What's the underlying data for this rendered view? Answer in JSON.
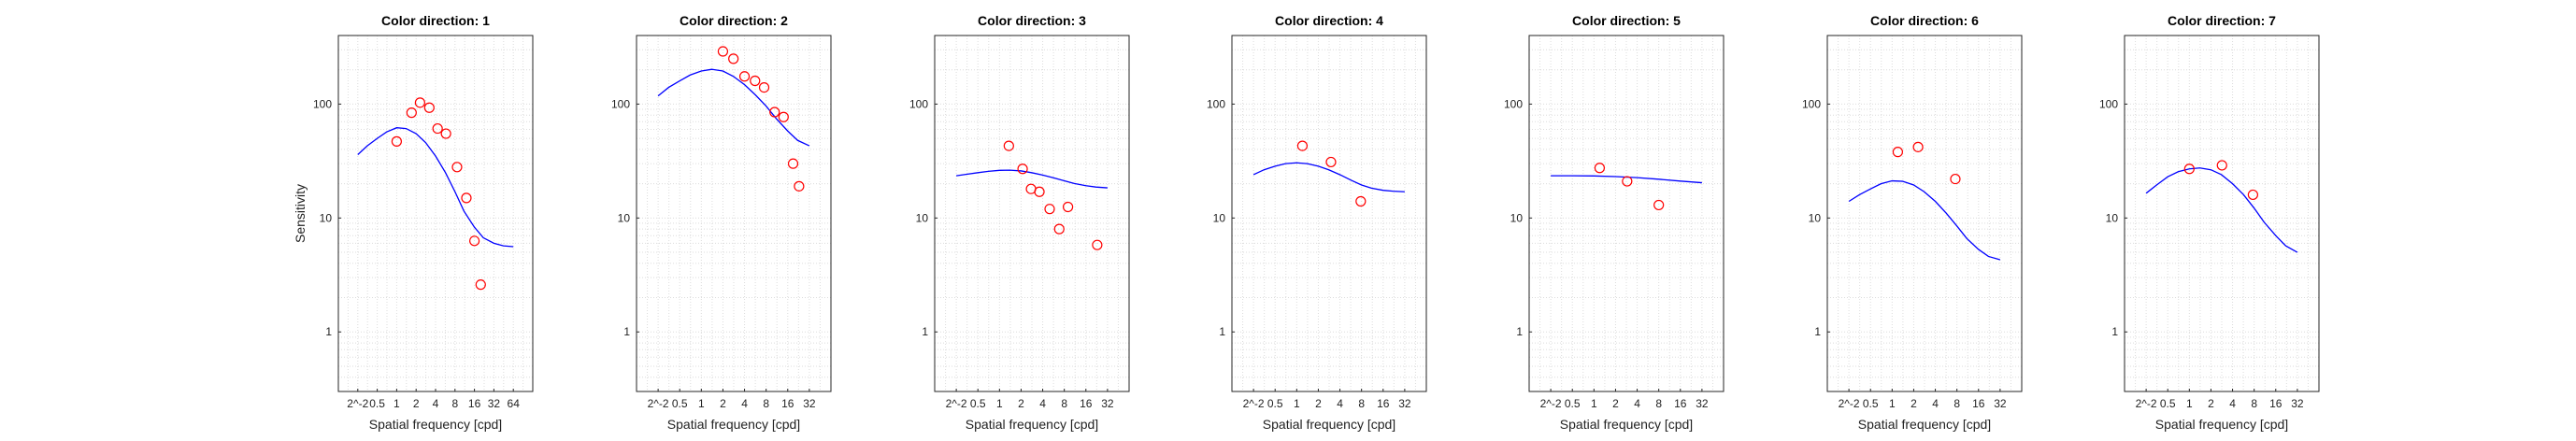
{
  "chart_data": [
    {
      "type": "line+scatter",
      "title": "Color direction: 1",
      "xlabel": "Spatial frequency [cpd]",
      "ylabel": "Sensitivity",
      "xscale": "log2",
      "yscale": "log10",
      "xlim": [
        0.125,
        128
      ],
      "ylim": [
        0.3,
        400
      ],
      "xticks": [
        0.25,
        0.5,
        1,
        2,
        4,
        8,
        16,
        32,
        64
      ],
      "xticklabels": [
        "2^-2",
        "0.5",
        "1",
        "2",
        "4",
        "8",
        "16",
        "32",
        "64"
      ],
      "yticks": [
        1,
        10,
        100
      ],
      "yticklabels": [
        "1",
        "10",
        "100"
      ],
      "grid": true,
      "model_curve": {
        "x": [
          0.25,
          0.35,
          0.5,
          0.7,
          1,
          1.4,
          2,
          2.8,
          4,
          5.7,
          8,
          11,
          16,
          22,
          32,
          45,
          64
        ],
        "y": [
          36,
          43,
          50,
          57,
          62,
          61,
          55,
          46,
          35,
          25,
          17,
          11.5,
          8.3,
          6.7,
          6.0,
          5.7,
          5.6
        ]
      },
      "measured": {
        "x": [
          1,
          1.7,
          2.3,
          3.2,
          4.3,
          5.8,
          8.6,
          12,
          16,
          20
        ],
        "y": [
          47,
          84,
          103,
          93,
          61,
          55,
          28,
          15,
          6.3,
          2.6
        ]
      }
    },
    {
      "type": "line+scatter",
      "title": "Color direction: 2",
      "xlabel": "Spatial frequency [cpd]",
      "ylabel": "",
      "xscale": "log2",
      "yscale": "log10",
      "xlim": [
        0.125,
        64
      ],
      "ylim": [
        0.3,
        400
      ],
      "xticks": [
        0.25,
        0.5,
        1,
        2,
        4,
        8,
        16,
        32
      ],
      "xticklabels": [
        "2^-2",
        "0.5",
        "1",
        "2",
        "4",
        "8",
        "16",
        "32"
      ],
      "yticks": [
        1,
        10,
        100
      ],
      "yticklabels": [
        "1",
        "10",
        "100"
      ],
      "grid": true,
      "model_curve": {
        "x": [
          0.25,
          0.35,
          0.5,
          0.7,
          1,
          1.4,
          2,
          2.8,
          4,
          5.7,
          8,
          11,
          16,
          22,
          32
        ],
        "y": [
          118,
          140,
          160,
          180,
          195,
          202,
          195,
          175,
          148,
          120,
          96,
          75,
          58,
          48,
          43
        ]
      },
      "measured": {
        "x": [
          2,
          2.8,
          4,
          5.6,
          7.5,
          10.5,
          14,
          19,
          23
        ],
        "y": [
          290,
          250,
          175,
          160,
          140,
          85,
          77,
          30,
          19
        ]
      }
    },
    {
      "type": "line+scatter",
      "title": "Color direction: 3",
      "xlabel": "Spatial frequency [cpd]",
      "ylabel": "",
      "xscale": "log2",
      "yscale": "log10",
      "xlim": [
        0.125,
        64
      ],
      "ylim": [
        0.3,
        400
      ],
      "xticks": [
        0.25,
        0.5,
        1,
        2,
        4,
        8,
        16,
        32
      ],
      "xticklabels": [
        "2^-2",
        "0.5",
        "1",
        "2",
        "4",
        "8",
        "16",
        "32"
      ],
      "yticks": [
        1,
        10,
        100
      ],
      "yticklabels": [
        "1",
        "10",
        "100"
      ],
      "grid": true,
      "model_curve": {
        "x": [
          0.25,
          0.35,
          0.5,
          0.7,
          1,
          1.4,
          2,
          2.8,
          4,
          5.7,
          8,
          11,
          16,
          22,
          32
        ],
        "y": [
          23.5,
          24.2,
          25.0,
          25.7,
          26.2,
          26.3,
          25.9,
          25.0,
          23.8,
          22.5,
          21.2,
          20.1,
          19.2,
          18.7,
          18.4
        ]
      },
      "measured": {
        "x": [
          1.35,
          2.1,
          2.75,
          3.6,
          5.0,
          6.8,
          9.0,
          23
        ],
        "y": [
          43,
          27,
          18,
          17,
          12,
          8,
          12.5,
          5.8
        ]
      }
    },
    {
      "type": "line+scatter",
      "title": "Color direction: 4",
      "xlabel": "Spatial frequency [cpd]",
      "ylabel": "",
      "xscale": "log2",
      "yscale": "log10",
      "xlim": [
        0.125,
        64
      ],
      "ylim": [
        0.3,
        400
      ],
      "xticks": [
        0.25,
        0.5,
        1,
        2,
        4,
        8,
        16,
        32
      ],
      "xticklabels": [
        "2^-2",
        "0.5",
        "1",
        "2",
        "4",
        "8",
        "16",
        "32"
      ],
      "yticks": [
        1,
        10,
        100
      ],
      "yticklabels": [
        "1",
        "10",
        "100"
      ],
      "grid": true,
      "model_curve": {
        "x": [
          0.25,
          0.35,
          0.5,
          0.7,
          1,
          1.4,
          2,
          2.8,
          4,
          5.7,
          8,
          11,
          16,
          22,
          32
        ],
        "y": [
          24,
          26.5,
          28.5,
          30,
          30.5,
          30,
          28.5,
          26.5,
          24,
          21.5,
          19.5,
          18.3,
          17.5,
          17.2,
          17.0
        ]
      },
      "measured": {
        "x": [
          1.2,
          3.0,
          7.8
        ],
        "y": [
          43,
          31,
          14
        ]
      }
    },
    {
      "type": "line+scatter",
      "title": "Color direction: 5",
      "xlabel": "Spatial frequency [cpd]",
      "ylabel": "",
      "xscale": "log2",
      "yscale": "log10",
      "xlim": [
        0.125,
        64
      ],
      "ylim": [
        0.3,
        400
      ],
      "xticks": [
        0.25,
        0.5,
        1,
        2,
        4,
        8,
        16,
        32
      ],
      "xticklabels": [
        "2^-2",
        "0.5",
        "1",
        "2",
        "4",
        "8",
        "16",
        "32"
      ],
      "yticks": [
        1,
        10,
        100
      ],
      "yticklabels": [
        "1",
        "10",
        "100"
      ],
      "grid": true,
      "model_curve": {
        "x": [
          0.25,
          0.5,
          1,
          2,
          4,
          8,
          16,
          32
        ],
        "y": [
          23.5,
          23.5,
          23.4,
          23.1,
          22.6,
          21.9,
          21.1,
          20.4
        ]
      },
      "measured": {
        "x": [
          1.2,
          2.9,
          8
        ],
        "y": [
          27.5,
          21,
          13
        ]
      }
    },
    {
      "type": "line+scatter",
      "title": "Color direction: 6",
      "xlabel": "Spatial frequency [cpd]",
      "ylabel": "",
      "xscale": "log2",
      "yscale": "log10",
      "xlim": [
        0.125,
        64
      ],
      "ylim": [
        0.3,
        400
      ],
      "xticks": [
        0.25,
        0.5,
        1,
        2,
        4,
        8,
        16,
        32
      ],
      "xticklabels": [
        "2^-2",
        "0.5",
        "1",
        "2",
        "4",
        "8",
        "16",
        "32"
      ],
      "yticks": [
        1,
        10,
        100
      ],
      "yticklabels": [
        "1",
        "10",
        "100"
      ],
      "grid": true,
      "model_curve": {
        "x": [
          0.25,
          0.35,
          0.5,
          0.7,
          1,
          1.4,
          2,
          2.8,
          4,
          5.7,
          8,
          11,
          16,
          22,
          32
        ],
        "y": [
          14,
          16,
          18,
          20,
          21.2,
          21,
          19.5,
          17,
          14,
          11,
          8.5,
          6.6,
          5.3,
          4.6,
          4.3
        ]
      },
      "measured": {
        "x": [
          1.2,
          2.3,
          7.6
        ],
        "y": [
          38,
          42,
          22
        ]
      }
    },
    {
      "type": "line+scatter",
      "title": "Color direction: 7",
      "xlabel": "Spatial frequency [cpd]",
      "ylabel": "",
      "xscale": "log2",
      "yscale": "log10",
      "xlim": [
        0.125,
        64
      ],
      "ylim": [
        0.3,
        400
      ],
      "xticks": [
        0.25,
        0.5,
        1,
        2,
        4,
        8,
        16,
        32
      ],
      "xticklabels": [
        "2^-2",
        "0.5",
        "1",
        "2",
        "4",
        "8",
        "16",
        "32"
      ],
      "yticks": [
        1,
        10,
        100
      ],
      "yticklabels": [
        "1",
        "10",
        "100"
      ],
      "grid": true,
      "model_curve": {
        "x": [
          0.25,
          0.35,
          0.5,
          0.7,
          1,
          1.4,
          2,
          2.8,
          4,
          5.7,
          8,
          11,
          16,
          22,
          32
        ],
        "y": [
          16.5,
          19.5,
          23,
          25.5,
          27,
          27.5,
          26.5,
          24,
          20,
          16,
          12.2,
          9.2,
          7,
          5.7,
          5.0
        ]
      },
      "measured": {
        "x": [
          1.0,
          2.85,
          7.7
        ],
        "y": [
          27,
          29,
          16
        ]
      }
    }
  ],
  "colors": {
    "model_curve": "#0000ff",
    "measured_marker": "#ff0000",
    "axes": "#262626",
    "grid": "#dcdcdc",
    "background": "#ffffff"
  }
}
